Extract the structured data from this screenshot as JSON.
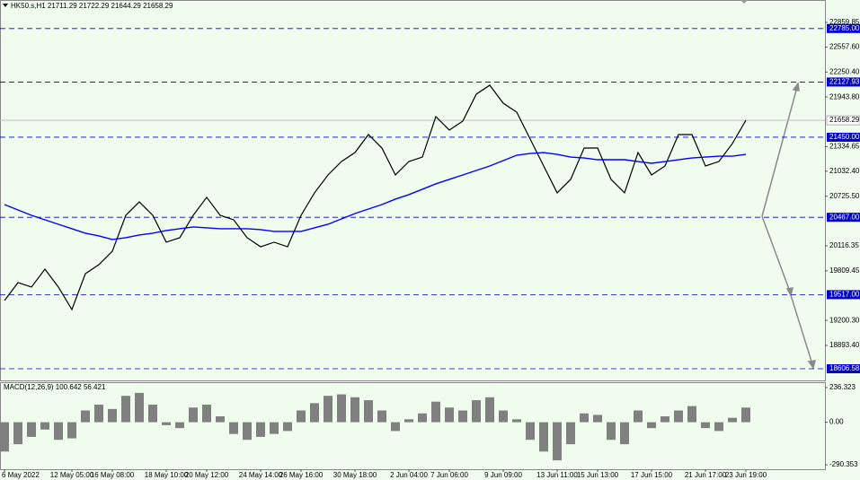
{
  "chart_data": {
    "type": "line",
    "title": "HK50.s,H1  21711.29 21722.29 21644.29 21658.29",
    "categories": [
      "6 May 2022",
      null,
      null,
      null,
      null,
      "12 May 05:00",
      null,
      null,
      "16 May 08:00",
      null,
      null,
      null,
      "18 May 10:00",
      null,
      null,
      "20 May 12:00",
      null,
      null,
      null,
      "24 May 14:00",
      null,
      null,
      "26 May 16:00",
      null,
      null,
      null,
      "30 May 18:00",
      null,
      null,
      null,
      "2 Jun 04:00",
      null,
      null,
      "7 Jun 06:00",
      null,
      null,
      null,
      "9 Jun 09:00",
      null,
      null,
      null,
      "13 Jun 11:00",
      null,
      null,
      "15 Jun 13:00",
      null,
      null,
      null,
      "17 Jun 15:00",
      null,
      null,
      null,
      "21 Jun 17:00",
      null,
      null,
      "23 Jun 19:00"
    ],
    "series": [
      {
        "color": "#000000",
        "values": [
          19444,
          19665,
          19610,
          19830,
          19610,
          19334,
          19775,
          19885,
          20050,
          20491,
          20656,
          20491,
          20161,
          20216,
          20491,
          20712,
          20491,
          20436,
          20216,
          20105,
          20161,
          20105,
          20491,
          20767,
          20987,
          21152,
          21262,
          21483,
          21317,
          20987,
          21152,
          21207,
          21703,
          21538,
          21648,
          21979,
          22089,
          21868,
          21758,
          21428,
          21097,
          20767,
          20932,
          21317,
          21317,
          20932,
          20767,
          21262,
          20987,
          21097,
          21483,
          21483,
          21097,
          21152,
          21373,
          21658.29
        ]
      },
      {
        "color": "#0000ff",
        "values": [
          20623,
          20557,
          20491,
          20436,
          20381,
          20326,
          20271,
          20238,
          20194,
          20216,
          20249,
          20271,
          20304,
          20326,
          20348,
          20337,
          20326,
          20326,
          20326,
          20315,
          20293,
          20293,
          20293,
          20337,
          20381,
          20447,
          20513,
          20568,
          20623,
          20690,
          20745,
          20811,
          20877,
          20932,
          20987,
          21042,
          21097,
          21163,
          21229,
          21251,
          21262,
          21240,
          21207,
          21196,
          21174,
          21174,
          21174,
          21152,
          21130,
          21152,
          21174,
          21196,
          21207,
          21218,
          21218,
          21240
        ]
      }
    ],
    "ylim": [
      18452.7,
      23135.3
    ],
    "yticks": [
      22859.85,
      {
        "value": 22557.6,
        "label": "22557.60"
      },
      {
        "value": 22250.4,
        "label": "22250.40"
      },
      {
        "value": 21943.8,
        "label": "21943.80"
      },
      21334.65,
      {
        "value": 21032.4,
        "label": "21032.40"
      },
      {
        "value": 20725.5,
        "label": "20725.50"
      },
      20116.35,
      19809.45,
      {
        "value": 19200.3,
        "label": "19200.30"
      },
      {
        "value": 18893.4,
        "label": "18893.40"
      }
    ],
    "levels": [
      {
        "value": 22785,
        "label": "22785.00"
      },
      22127.93,
      {
        "value": 21450,
        "label": "21450.00"
      },
      {
        "value": 20467,
        "label": "20467.00"
      },
      {
        "value": 19517,
        "label": "19517.00"
      },
      18606.58
    ],
    "level_color": "#0000cd",
    "current_price": 21658.29,
    "background": "#effcee",
    "macd": {
      "title": "MACD(12,26,9) 100.642 56.421",
      "color": "#808080",
      "ylim": [
        -326.7,
        266.6
      ],
      "yticks": [
        236.323,
        {
          "value": 0,
          "label": "0.00"
        },
        -290.353
      ],
      "values": [
        -200,
        -150,
        -100,
        -50,
        -120,
        -110,
        80,
        120,
        90,
        180,
        200,
        120,
        -20,
        -40,
        100,
        120,
        40,
        -80,
        -120,
        -100,
        -80,
        -60,
        80,
        130,
        180,
        190,
        170,
        150,
        80,
        -60,
        20,
        60,
        140,
        100,
        80,
        150,
        170,
        80,
        20,
        -120,
        -200,
        -260,
        -150,
        60,
        50,
        -120,
        -150,
        80,
        -40,
        40,
        80,
        110,
        -40,
        -60,
        30,
        100
      ]
    }
  }
}
